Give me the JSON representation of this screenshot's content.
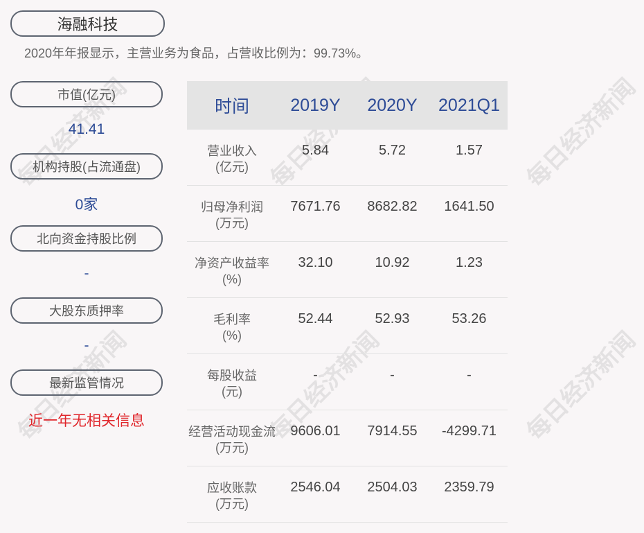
{
  "company": "海融科技",
  "summary": "2020年年报显示，主营业务为食品，占营收比例为：99.73%。",
  "left": [
    {
      "label": "市值(亿元)",
      "value": "41.41"
    },
    {
      "label": "机构持股(占流通盘)",
      "value": "0家"
    },
    {
      "label": "北向资金持股比例",
      "value": "-"
    },
    {
      "label": "大股东质押率",
      "value": "-"
    },
    {
      "label": "最新监管情况",
      "value": "近一年无相关信息"
    }
  ],
  "table": {
    "headers": [
      "时间",
      "2019Y",
      "2020Y",
      "2021Q1"
    ],
    "rows": [
      {
        "l1": "营业收入",
        "l2": "(亿元)",
        "v": [
          "5.84",
          "5.72",
          "1.57"
        ]
      },
      {
        "l1": "归母净利润",
        "l2": "(万元)",
        "v": [
          "7671.76",
          "8682.82",
          "1641.50"
        ]
      },
      {
        "l1": "净资产收益率",
        "l2": "(%)",
        "v": [
          "32.10",
          "10.92",
          "1.23"
        ]
      },
      {
        "l1": "毛利率",
        "l2": "(%)",
        "v": [
          "52.44",
          "52.93",
          "53.26"
        ]
      },
      {
        "l1": "每股收益",
        "l2": "(元)",
        "v": [
          "-",
          "-",
          "-"
        ]
      },
      {
        "l1": "经营活动现金流",
        "l2": "(万元)",
        "v": [
          "9606.01",
          "7914.55",
          "-4299.71"
        ]
      },
      {
        "l1": "应收账款",
        "l2": "(万元)",
        "v": [
          "2546.04",
          "2504.03",
          "2359.79"
        ]
      }
    ]
  },
  "watermark": "每日经济新闻"
}
